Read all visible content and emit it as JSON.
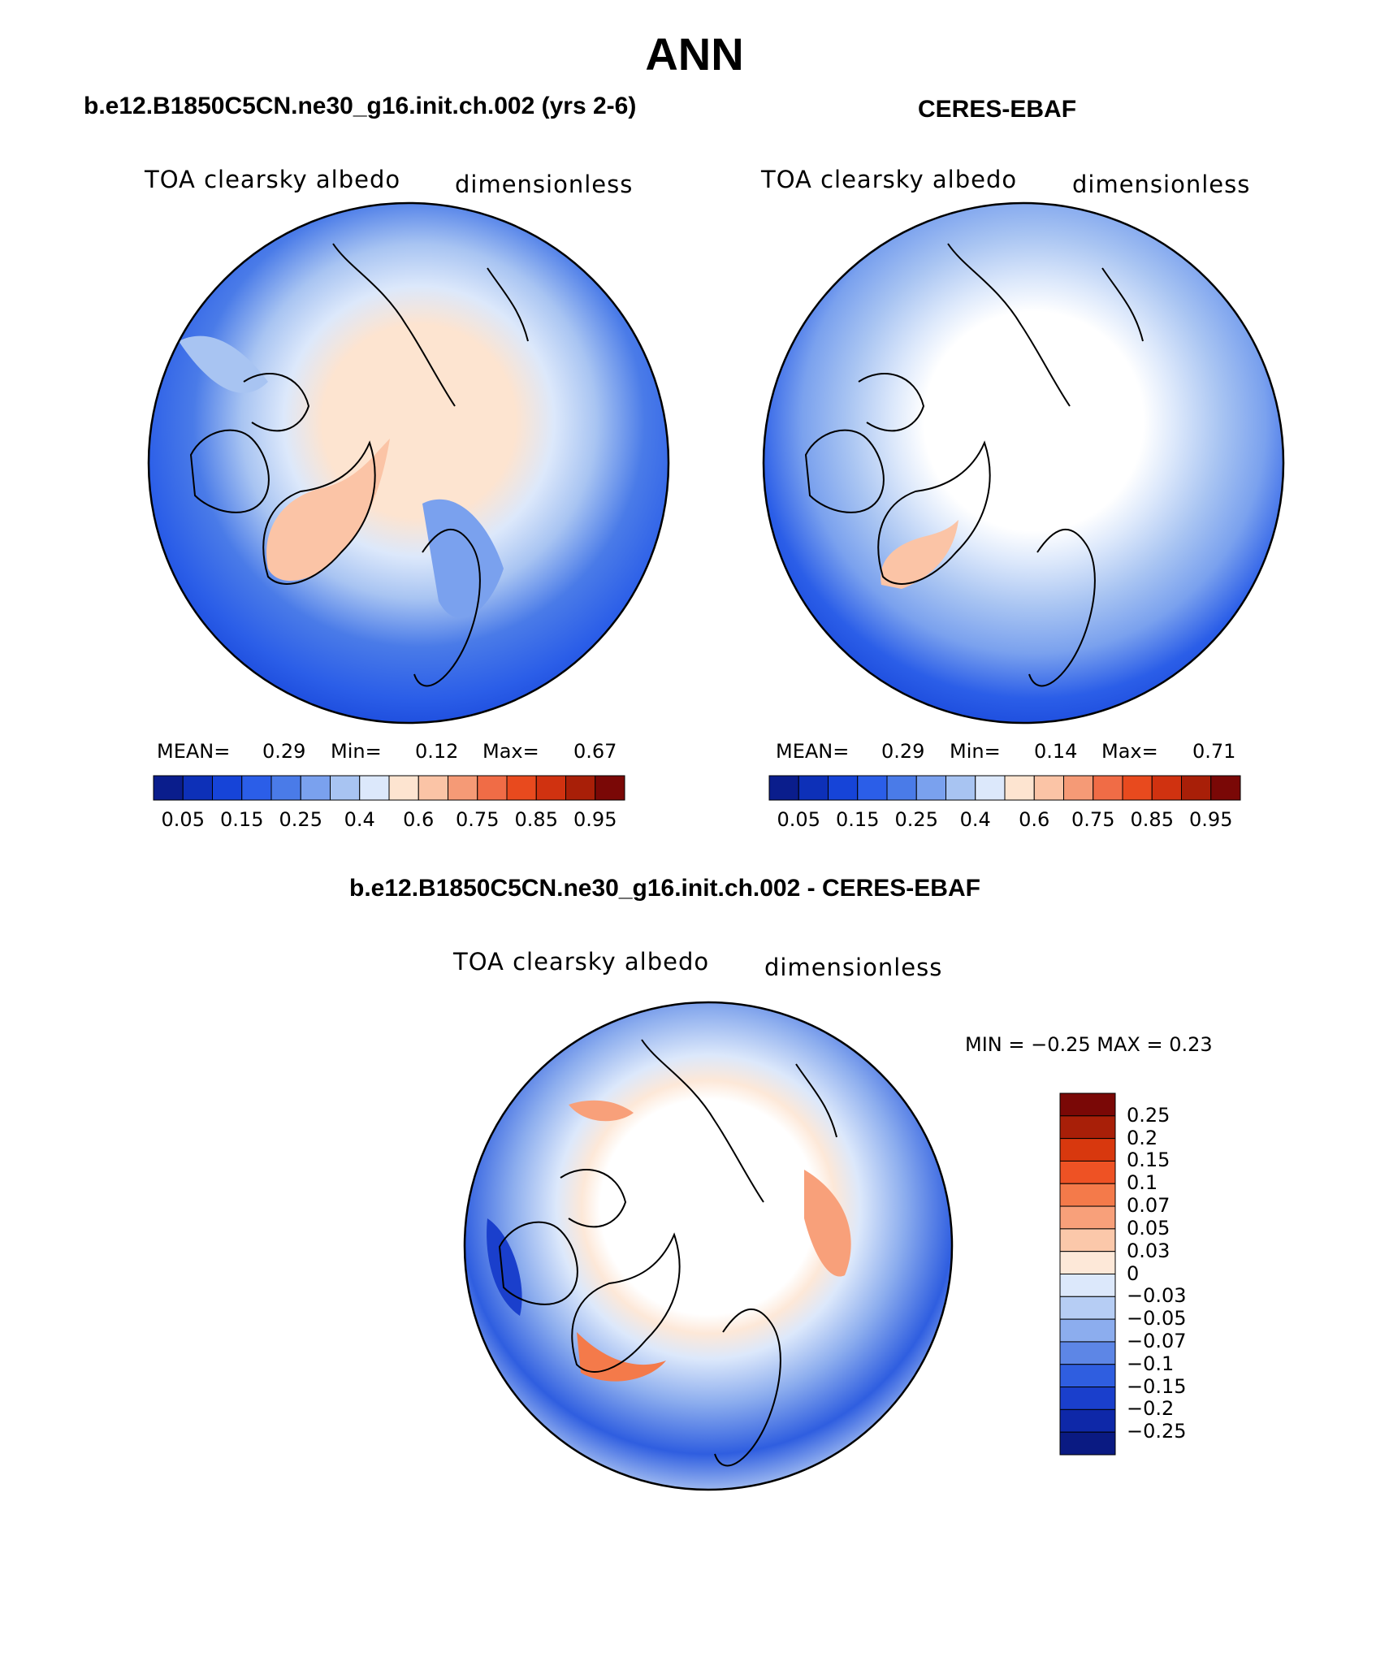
{
  "header": {
    "title": "ANN"
  },
  "panels": [
    {
      "id": "model",
      "title": "b.e12.B1850C5CN.ne30_g16.init.ch.002 (yrs 2-6)",
      "variable": "TOA clearsky albedo",
      "units": "dimensionless",
      "stats": {
        "mean_label": "MEAN=",
        "mean": "0.29",
        "min_label": "Min=",
        "min": "0.12",
        "max_label": "Max=",
        "max": "0.67"
      }
    },
    {
      "id": "obs",
      "title": "CERES-EBAF",
      "variable": "TOA clearsky albedo",
      "units": "dimensionless",
      "stats": {
        "mean_label": "MEAN=",
        "mean": "0.29",
        "min_label": "Min=",
        "min": "0.14",
        "max_label": "Max=",
        "max": "0.71"
      }
    }
  ],
  "colorbar_abs": {
    "labels": [
      "0.05",
      "0.15",
      "0.25",
      "0.4",
      "0.6",
      "0.75",
      "0.85",
      "0.95"
    ],
    "colors": [
      "#0a1d8c",
      "#0d30b8",
      "#1644d8",
      "#2b5ee8",
      "#4a7be8",
      "#7aa1ee",
      "#a8c4f2",
      "#dce8fb",
      "#fde4d0",
      "#fbc4a6",
      "#f59a76",
      "#f06c46",
      "#e84a1e",
      "#d03210",
      "#a81f08",
      "#7a0806"
    ]
  },
  "difference": {
    "title": "b.e12.B1850C5CN.ne30_g16.init.ch.002 - CERES-EBAF",
    "variable": "TOA clearsky albedo",
    "units": "dimensionless",
    "minmax": "MIN =   −0.25  MAX =     0.23",
    "colorbar": {
      "labels": [
        "0.25",
        "0.2",
        "0.15",
        "0.1",
        "0.07",
        "0.05",
        "0.03",
        "0",
        "−0.03",
        "−0.05",
        "−0.07",
        "−0.1",
        "−0.15",
        "−0.2",
        "−0.25"
      ],
      "colors": [
        "#7a0806",
        "#a81f08",
        "#d8380e",
        "#ee5224",
        "#f47a4a",
        "#f8a07a",
        "#fbc8aa",
        "#fde8d8",
        "#dce8fb",
        "#b6cdf4",
        "#8cadee",
        "#5d86e6",
        "#2f5ee0",
        "#1a3fcc",
        "#0e28a8",
        "#0a1a82"
      ]
    }
  }
}
